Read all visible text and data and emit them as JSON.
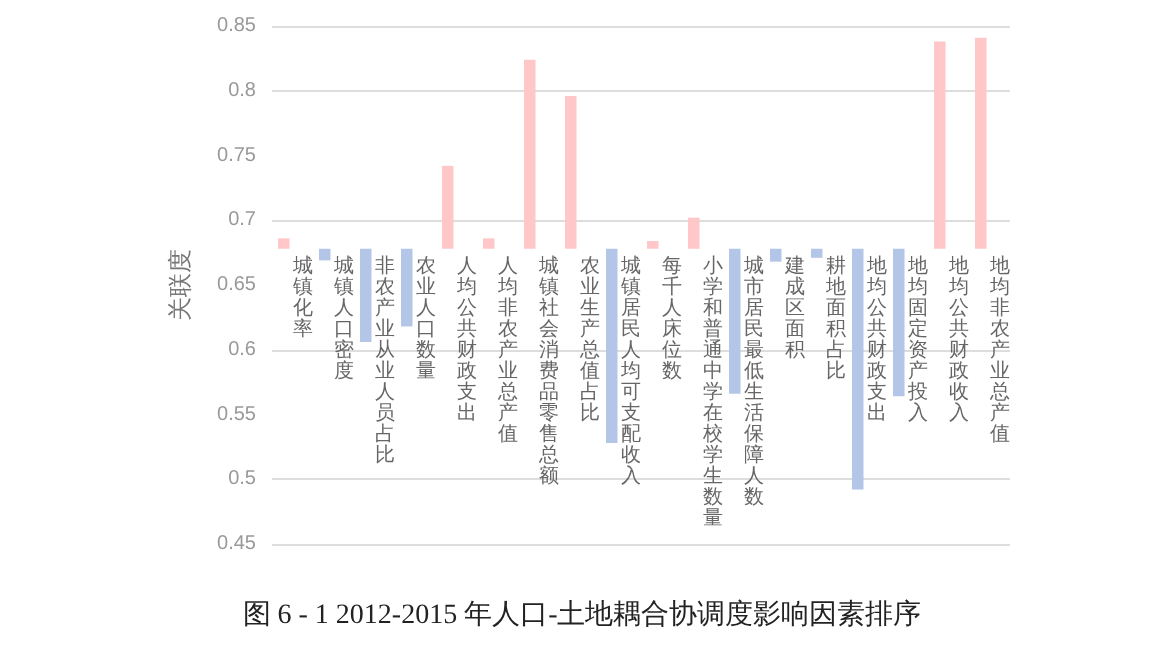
{
  "chart_data": {
    "type": "bar",
    "title": "图 6 - 1 2012-2015 年人口-土地耦合协调度影响因素排序",
    "ylabel": "关联度",
    "categories": [
      "城镇化率",
      "城镇人口密度",
      "非农产业从业人员占比",
      "农业人口数量",
      "人均公共财政支出",
      "人均非农产业总产值",
      "城镇社会消费品零售总额",
      "农业生产总值占比",
      "城镇居民人均可支配收入",
      "每千人床位数",
      "小学和普通中学在校学生数量",
      "城市居民最低生活保障人数",
      "建成区面积",
      "耕地面积占比",
      "地均公共财政支出",
      "地均固定资产投入",
      "地均公共财政收入",
      "地均非农产业总产值"
    ],
    "base": [
      0.678,
      0.678,
      0.678,
      0.678,
      0.678,
      0.678,
      0.678,
      0.678,
      0.678,
      0.678,
      0.678,
      0.678,
      0.678,
      0.678,
      0.678,
      0.678,
      0.678,
      0.678
    ],
    "values": [
      0.008,
      -0.009,
      -0.072,
      -0.06,
      0.064,
      0.008,
      0.146,
      0.118,
      -0.15,
      0.006,
      0.024,
      -0.112,
      -0.01,
      -0.007,
      -0.186,
      -0.114,
      0.16,
      0.163
    ],
    "colors": [
      "#ffc7c7",
      "#b4c6e7",
      "#b4c6e7",
      "#b4c6e7",
      "#ffc7c7",
      "#ffc7c7",
      "#ffc7c7",
      "#ffc7c7",
      "#b4c6e7",
      "#ffc7c7",
      "#ffc7c7",
      "#b4c6e7",
      "#b4c6e7",
      "#b4c6e7",
      "#b4c6e7",
      "#b4c6e7",
      "#ffc7c7",
      "#ffc7c7"
    ],
    "ylim": [
      0.45,
      0.85
    ],
    "yticks": [
      0.45,
      0.5,
      0.55,
      0.6,
      0.65,
      0.7,
      0.75,
      0.8,
      0.85
    ],
    "grid": "y"
  }
}
